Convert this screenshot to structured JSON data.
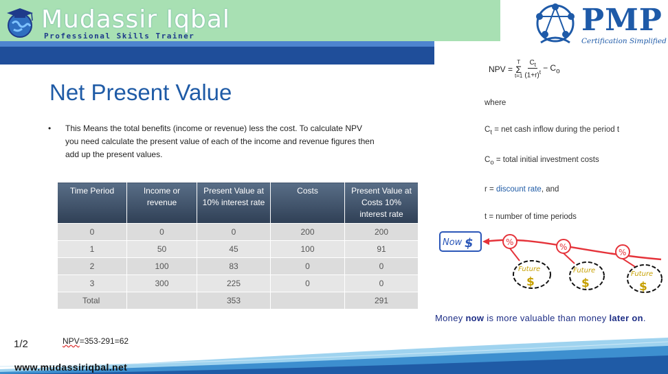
{
  "header": {
    "brand_name": "Mudassir Iqbal",
    "brand_tagline": "Professional Skills Trainer",
    "pmp_title": "PMP",
    "pmp_subtitle": "Certification Simplified"
  },
  "colors": {
    "accent": "#1f5ba6",
    "header_green": "#a8e0b3",
    "stripe_blue": "#1f4e9a",
    "cartoon_red": "#e5333a"
  },
  "slide": {
    "title": "Net Present Value",
    "bullet": "This Means the total benefits (income or revenue) less the cost. To calculate NPV you need calculate the present value of each of the income and revenue figures then add up the present values."
  },
  "table": {
    "headers": [
      "Time Period",
      "Income or revenue",
      "Present Value at 10% interest rate",
      "Costs",
      "Present Value at Costs 10% interest rate"
    ],
    "rows": [
      [
        "0",
        "0",
        "0",
        "200",
        "200"
      ],
      [
        "1",
        "50",
        "45",
        "100",
        "91"
      ],
      [
        "2",
        "100",
        "83",
        "0",
        "0"
      ],
      [
        "3",
        "300",
        "225",
        "0",
        "0"
      ]
    ],
    "total": {
      "label": "Total",
      "income": "",
      "pv_income": "353",
      "costs": "",
      "pv_costs": "291"
    }
  },
  "formula": {
    "lhs": "NPV =",
    "sum_top": "T",
    "sum_bottom": "t=1",
    "numerator": "C",
    "numerator_sub": "t",
    "denominator": "(1+r)",
    "denominator_sup": "t",
    "minus": "− C",
    "minus_sub": "o"
  },
  "definitions": {
    "where": "where",
    "ct_symbol": "C",
    "ct_sub": "t",
    "ct_text": "= net cash inflow during the period t",
    "co_symbol": "C",
    "co_sub": "o",
    "co_text": "= total initial investment costs",
    "r_prefix": "r =",
    "r_link": "discount rate",
    "r_suffix": ", and",
    "t_text": "t = number of time periods"
  },
  "cartoon": {
    "now_label": "Now",
    "dollar": "$",
    "future_label": "Future",
    "percent": "%"
  },
  "money_line": {
    "part1": "Money ",
    "now": "now",
    "part2": " is more valuable than money ",
    "later": "later on",
    "end": "."
  },
  "footer": {
    "page": "1/2",
    "npv_prefix": "NPV",
    "npv_rest": "=353-291=62",
    "url": "www.mudassiriqbal.net"
  }
}
